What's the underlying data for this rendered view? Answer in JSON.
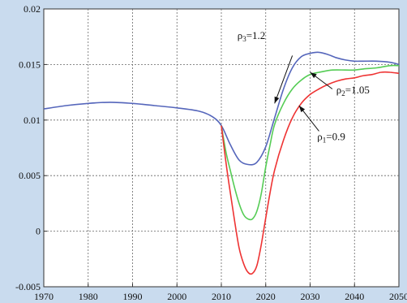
{
  "chart_data": {
    "type": "line",
    "title": "",
    "xlabel": "",
    "ylabel": "",
    "xlim": [
      1970,
      2050
    ],
    "ylim": [
      -0.005,
      0.02
    ],
    "grid": true,
    "x_ticks": [
      1970,
      1980,
      1990,
      2000,
      2010,
      2020,
      2030,
      2040,
      2050
    ],
    "x_tick_labels": [
      "1970",
      "1980",
      "1990",
      "2000",
      "2010",
      "2020",
      "2030",
      "2040",
      "2050"
    ],
    "y_ticks": [
      -0.005,
      0,
      0.005,
      0.01,
      0.015,
      0.02
    ],
    "y_tick_labels": [
      "-0.005",
      "0",
      "0.005",
      "0.01",
      "0.015",
      "0.02"
    ],
    "series": [
      {
        "color": "#5566bb",
        "x": [
          1970,
          1975,
          1980,
          1985,
          1990,
          1995,
          2000,
          2005,
          2008,
          2010,
          2012,
          2014,
          2016,
          2018,
          2020,
          2022,
          2024,
          2026,
          2028,
          2030,
          2032,
          2034,
          2036,
          2038,
          2040,
          2042,
          2045,
          2048,
          2050
        ],
        "values": [
          0.011,
          0.0113,
          0.0115,
          0.0116,
          0.0115,
          0.0113,
          0.0111,
          0.0108,
          0.0103,
          0.0095,
          0.0078,
          0.0064,
          0.006,
          0.0062,
          0.0076,
          0.0102,
          0.0128,
          0.0147,
          0.0157,
          0.016,
          0.0161,
          0.0159,
          0.0156,
          0.0154,
          0.0153,
          0.0153,
          0.0153,
          0.0152,
          0.015
        ]
      },
      {
        "color": "#55cc55",
        "x": [
          2010,
          2011,
          2012,
          2013,
          2014,
          2015,
          2016,
          2017,
          2018,
          2019,
          2020,
          2021,
          2022,
          2024,
          2026,
          2028,
          2030,
          2032,
          2035,
          2038,
          2040,
          2042,
          2045,
          2048,
          2050
        ],
        "values": [
          0.0095,
          0.0072,
          0.0055,
          0.0039,
          0.0025,
          0.0015,
          0.0011,
          0.0011,
          0.0018,
          0.0034,
          0.0058,
          0.0078,
          0.0096,
          0.0115,
          0.0128,
          0.0136,
          0.0141,
          0.0143,
          0.0145,
          0.0145,
          0.0145,
          0.0146,
          0.0147,
          0.0149,
          0.0149
        ]
      },
      {
        "color": "#ee3333",
        "x": [
          2010,
          2011,
          2012,
          2013,
          2014,
          2015,
          2016,
          2017,
          2018,
          2019,
          2020,
          2021,
          2022,
          2024,
          2026,
          2028,
          2030,
          2032,
          2034,
          2036,
          2038,
          2040,
          2042,
          2044,
          2046,
          2048,
          2050
        ],
        "values": [
          0.0095,
          0.0063,
          0.0035,
          0.0009,
          -0.0015,
          -0.0029,
          -0.0037,
          -0.0038,
          -0.0031,
          -0.0012,
          0.0012,
          0.0035,
          0.0055,
          0.0082,
          0.0102,
          0.0115,
          0.0123,
          0.0128,
          0.0132,
          0.0135,
          0.0137,
          0.0138,
          0.014,
          0.0141,
          0.0143,
          0.0143,
          0.0142
        ]
      }
    ],
    "annotations": [
      {
        "base": "ρ",
        "sub": "3",
        "rest": "=1.2",
        "tx": 2013.6,
        "ty": 0.0173,
        "ax": 2026,
        "ay": 0.0158,
        "hx": 2022,
        "hy": 0.0115
      },
      {
        "base": "ρ",
        "sub": "2",
        "rest": "=1.05",
        "tx": 2035.9,
        "ty": 0.0124,
        "ax": 2035,
        "ay": 0.0128,
        "hx": 2030,
        "hy": 0.0143
      },
      {
        "base": "ρ",
        "sub": "1",
        "rest": "=0.9",
        "tx": 2031.6,
        "ty": 0.0082,
        "ax": 2032,
        "ay": 0.009,
        "hx": 2027.5,
        "hy": 0.0113
      }
    ]
  }
}
